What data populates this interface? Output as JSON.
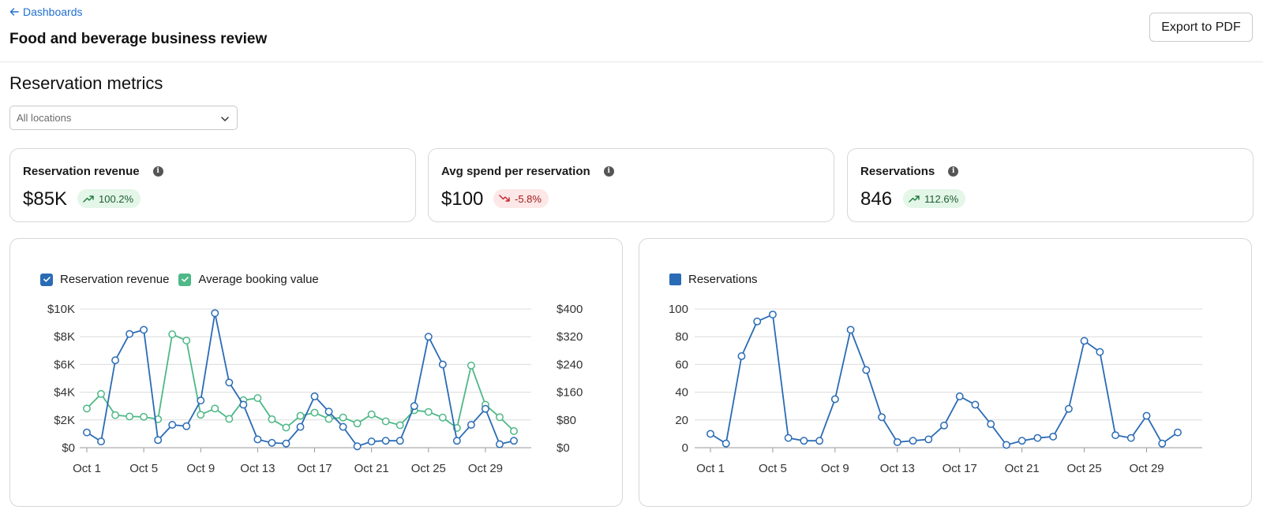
{
  "header": {
    "back_label": "Dashboards",
    "title": "Food and beverage business review",
    "export_label": "Export to PDF"
  },
  "section": {
    "title": "Reservation metrics",
    "location_select": {
      "value": "All locations",
      "icon": "chevron-down-icon"
    }
  },
  "kpis": [
    {
      "label": "Reservation revenue",
      "value": "$85K",
      "change": "100.2%",
      "trend": "up"
    },
    {
      "label": "Avg spend per reservation",
      "value": "$100",
      "change": "-5.8%",
      "trend": "down"
    },
    {
      "label": "Reservations",
      "value": "846",
      "change": "112.6%",
      "trend": "up"
    }
  ],
  "colors": {
    "revenue": "#2a6bb5",
    "booking": "#4eb887",
    "grid": "#dcdcdc",
    "link": "#1f6fd1"
  },
  "chart_data": [
    {
      "type": "line",
      "legend": [
        "Reservation revenue",
        "Average booking value"
      ],
      "x": [
        "Oct 1",
        "Oct 2",
        "Oct 3",
        "Oct 4",
        "Oct 5",
        "Oct 6",
        "Oct 7",
        "Oct 8",
        "Oct 9",
        "Oct 10",
        "Oct 11",
        "Oct 12",
        "Oct 13",
        "Oct 14",
        "Oct 15",
        "Oct 16",
        "Oct 17",
        "Oct 18",
        "Oct 19",
        "Oct 20",
        "Oct 21",
        "Oct 22",
        "Oct 23",
        "Oct 24",
        "Oct 25",
        "Oct 26",
        "Oct 27",
        "Oct 28",
        "Oct 29",
        "Oct 30",
        "Oct 31"
      ],
      "x_ticks": [
        "Oct 1",
        "Oct 5",
        "Oct 9",
        "Oct 13",
        "Oct 17",
        "Oct 21",
        "Oct 25",
        "Oct 29"
      ],
      "y_left": {
        "ticks": [
          "$0",
          "$2K",
          "$4K",
          "$6K",
          "$8K",
          "$10K"
        ],
        "range": [
          0,
          10000
        ]
      },
      "y_right": {
        "ticks": [
          "$0",
          "$80",
          "$160",
          "$240",
          "$320",
          "$400"
        ],
        "range": [
          0,
          400
        ]
      },
      "series": [
        {
          "name": "Reservation revenue",
          "axis": "left",
          "values": [
            1100,
            450,
            6300,
            8200,
            8500,
            550,
            1650,
            1550,
            3400,
            9700,
            4700,
            3100,
            600,
            350,
            300,
            1500,
            3700,
            2600,
            1500,
            100,
            450,
            500,
            500,
            3000,
            8000,
            6000,
            500,
            1650,
            2800,
            250,
            500
          ]
        },
        {
          "name": "Average booking value",
          "axis": "right",
          "values": [
            113,
            155,
            94,
            90,
            89,
            82,
            327,
            309,
            95,
            113,
            83,
            137,
            143,
            82,
            58,
            92,
            101,
            83,
            87,
            70,
            96,
            76,
            65,
            108,
            103,
            87,
            57,
            237,
            124,
            88,
            48
          ]
        }
      ],
      "grid": true,
      "legend_position": "top-left"
    },
    {
      "type": "line",
      "legend": [
        "Reservations"
      ],
      "x": [
        "Oct 1",
        "Oct 2",
        "Oct 3",
        "Oct 4",
        "Oct 5",
        "Oct 6",
        "Oct 7",
        "Oct 8",
        "Oct 9",
        "Oct 10",
        "Oct 11",
        "Oct 12",
        "Oct 13",
        "Oct 14",
        "Oct 15",
        "Oct 16",
        "Oct 17",
        "Oct 18",
        "Oct 19",
        "Oct 20",
        "Oct 21",
        "Oct 22",
        "Oct 23",
        "Oct 24",
        "Oct 25",
        "Oct 26",
        "Oct 27",
        "Oct 28",
        "Oct 29",
        "Oct 30",
        "Oct 31"
      ],
      "x_ticks": [
        "Oct 1",
        "Oct 5",
        "Oct 9",
        "Oct 13",
        "Oct 17",
        "Oct 21",
        "Oct 25",
        "Oct 29"
      ],
      "y": {
        "ticks": [
          "0",
          "20",
          "40",
          "60",
          "80",
          "100"
        ],
        "range": [
          0,
          100
        ]
      },
      "series": [
        {
          "name": "Reservations",
          "values": [
            10,
            3,
            66,
            91,
            96,
            7,
            5,
            5,
            35,
            85,
            56,
            22,
            4,
            5,
            6,
            16,
            37,
            31,
            17,
            2,
            5,
            7,
            8,
            28,
            77,
            69,
            9,
            7,
            23,
            3,
            11
          ]
        }
      ],
      "grid": true,
      "legend_position": "top-left"
    }
  ]
}
